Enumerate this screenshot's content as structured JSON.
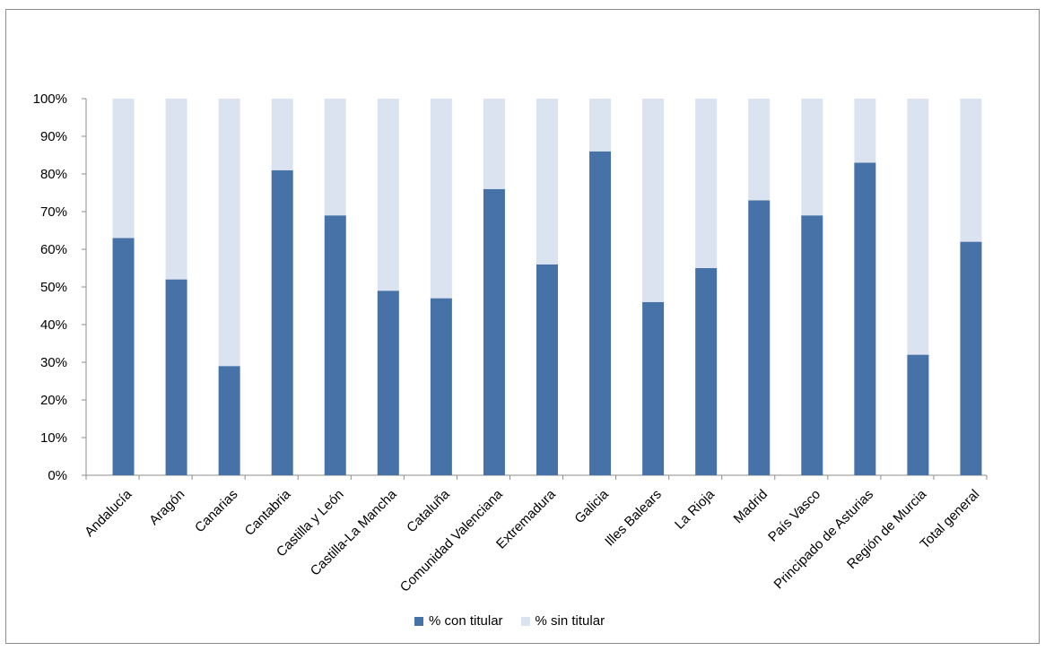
{
  "chart_data": {
    "type": "bar",
    "stacked": true,
    "percent_stacked": true,
    "categories": [
      "Andalucía",
      "Aragón",
      "Canarias",
      "Cantabria",
      "Castilla y León",
      "Castilla-La Mancha",
      "Cataluña",
      "Comunidad Valenciana",
      "Extremadura",
      "Galicia",
      "Illes Balears",
      "La Rioja",
      "Madrid",
      "País Vasco",
      "Principado de Asturias",
      "Región de Murcia",
      "Total general"
    ],
    "series": [
      {
        "name": "% con titular",
        "color": "#4672a8",
        "values": [
          63,
          52,
          29,
          81,
          69,
          49,
          47,
          76,
          56,
          86,
          46,
          55,
          73,
          69,
          83,
          32,
          62
        ]
      },
      {
        "name": "% sin titular",
        "color": "#dbe3f0",
        "values": [
          37,
          48,
          71,
          19,
          31,
          51,
          53,
          24,
          44,
          14,
          54,
          45,
          27,
          31,
          17,
          68,
          38
        ]
      }
    ],
    "ylim": [
      0,
      100
    ],
    "yticks": [
      "0%",
      "10%",
      "20%",
      "30%",
      "40%",
      "50%",
      "60%",
      "70%",
      "80%",
      "90%",
      "100%"
    ],
    "grid": false,
    "legend_position": "bottom",
    "title": "",
    "xlabel": "",
    "ylabel": ""
  }
}
